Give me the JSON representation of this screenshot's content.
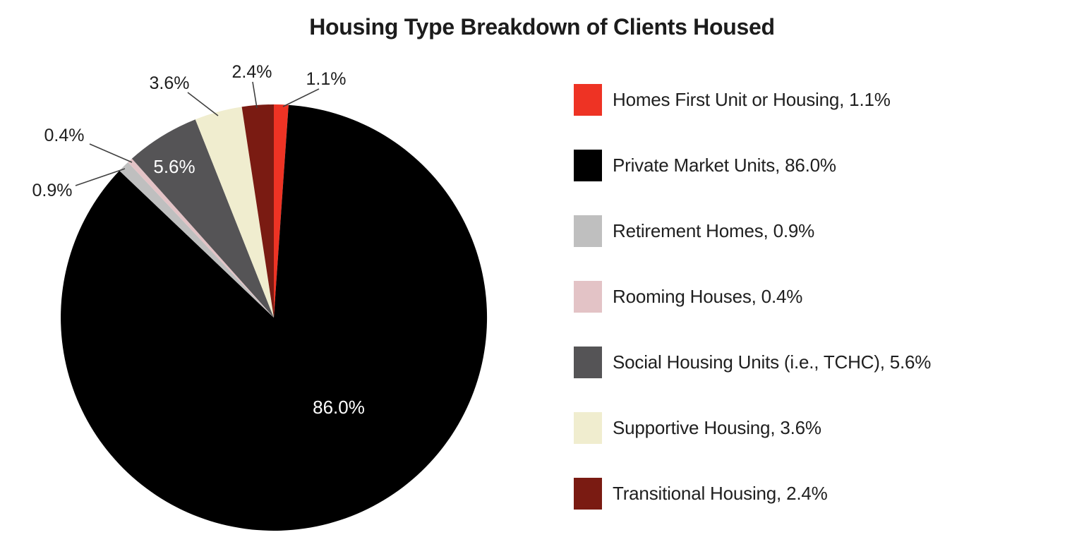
{
  "title": "Housing Type Breakdown of Clients Housed",
  "chart_data": {
    "type": "pie",
    "title": "Housing Type Breakdown of Clients Housed",
    "background_color": "#ffffff",
    "start_angle_deg": 0,
    "direction": "clockwise",
    "legend_position": "right",
    "slices": [
      {
        "label": "Homes First Unit or Housing",
        "value": 1.1,
        "pct_label": "1.1%",
        "legend_text": "Homes First Unit or Housing, 1.1%",
        "color": "#EE3324",
        "label_placement": "outside"
      },
      {
        "label": "Private Market Units",
        "value": 86.0,
        "pct_label": "86.0%",
        "legend_text": "Private Market Units, 86.0%",
        "color": "#000000",
        "label_placement": "inside"
      },
      {
        "label": "Retirement Homes",
        "value": 0.9,
        "pct_label": "0.9%",
        "legend_text": "Retirement Homes, 0.9%",
        "color": "#BFBFBF",
        "label_placement": "outside"
      },
      {
        "label": "Rooming Houses",
        "value": 0.4,
        "pct_label": "0.4%",
        "legend_text": "Rooming Houses, 0.4%",
        "color": "#E3C3C6",
        "label_placement": "outside"
      },
      {
        "label": "Social Housing Units (i.e., TCHC)",
        "value": 5.6,
        "pct_label": "5.6%",
        "legend_text": "Social Housing Units (i.e., TCHC), 5.6%",
        "color": "#555456",
        "label_placement": "inside"
      },
      {
        "label": "Supportive Housing",
        "value": 3.6,
        "pct_label": "3.6%",
        "legend_text": "Supportive Housing, 3.6%",
        "color": "#F0EDCF",
        "label_placement": "outside"
      },
      {
        "label": "Transitional Housing",
        "value": 2.4,
        "pct_label": "2.4%",
        "legend_text": "Transitional Housing, 2.4%",
        "color": "#7A1B12",
        "label_placement": "outside"
      }
    ]
  }
}
